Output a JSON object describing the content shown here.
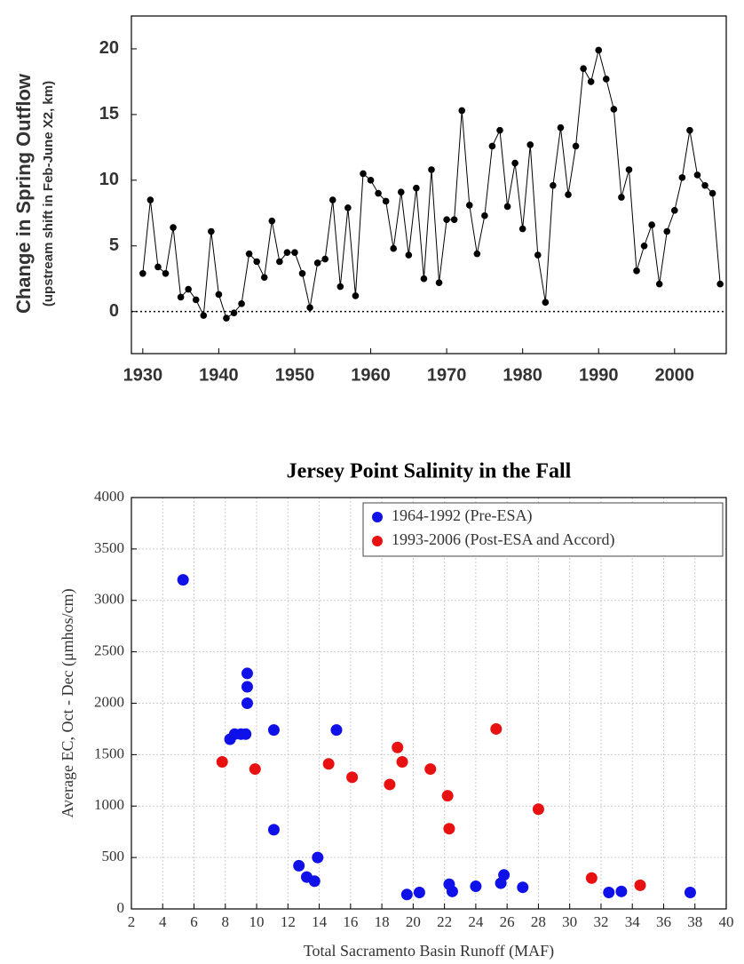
{
  "chart_data": [
    {
      "type": "line",
      "y_label": "Change in Spring Outflow",
      "y_sublabel": "(upstream shift in Feb-June X2, km)",
      "x": [
        1930,
        1931,
        1932,
        1933,
        1934,
        1935,
        1936,
        1937,
        1938,
        1939,
        1940,
        1941,
        1942,
        1943,
        1944,
        1945,
        1946,
        1947,
        1948,
        1949,
        1950,
        1951,
        1952,
        1953,
        1954,
        1955,
        1956,
        1957,
        1958,
        1959,
        1960,
        1961,
        1962,
        1963,
        1964,
        1965,
        1966,
        1967,
        1968,
        1969,
        1970,
        1971,
        1972,
        1973,
        1974,
        1975,
        1976,
        1977,
        1978,
        1979,
        1980,
        1981,
        1982,
        1983,
        1984,
        1985,
        1986,
        1987,
        1988,
        1989,
        1990,
        1991,
        1992,
        1993,
        1994,
        1995,
        1996,
        1997,
        1998,
        1999,
        2000,
        2001,
        2002,
        2003,
        2004,
        2005,
        2006
      ],
      "values": [
        2.9,
        8.5,
        3.4,
        2.9,
        6.4,
        1.1,
        1.7,
        0.9,
        -0.3,
        6.1,
        1.3,
        -0.5,
        -0.1,
        0.6,
        4.4,
        3.8,
        2.6,
        6.9,
        3.8,
        4.5,
        4.5,
        2.9,
        0.3,
        3.7,
        4.0,
        8.5,
        1.9,
        7.9,
        1.2,
        10.5,
        10.0,
        9.0,
        8.4,
        4.8,
        9.1,
        4.3,
        9.4,
        2.5,
        10.8,
        2.2,
        7.0,
        7.0,
        15.3,
        8.1,
        4.4,
        7.3,
        12.6,
        13.8,
        8.0,
        11.3,
        6.3,
        12.7,
        4.3,
        0.7,
        9.6,
        14.0,
        8.9,
        12.6,
        18.5,
        17.5,
        19.9,
        17.7,
        15.4,
        8.7,
        10.8,
        3.1,
        5.0,
        6.6,
        2.1,
        6.1,
        7.7,
        10.2,
        13.8,
        10.4,
        9.6,
        9.0,
        2.1
      ],
      "color": "#000000",
      "reference_line": 0,
      "xlim": [
        1928.5,
        2006.8
      ],
      "xticks": [
        1930,
        1940,
        1950,
        1960,
        1970,
        1980,
        1990,
        2000
      ],
      "ylim": [
        -3.2,
        22.5
      ],
      "yticks": [
        0,
        5,
        10,
        15,
        20
      ],
      "grid": false
    },
    {
      "type": "scatter",
      "title": "Jersey Point Salinity in the Fall",
      "x_label": "Total Sacramento Basin Runoff (MAF)",
      "y_label": "Average EC, Oct - Dec (μmhos/cm)",
      "series": [
        {
          "name": "1964-1992 (Pre-ESA)",
          "color": "#1010e8",
          "x": [
            5.3,
            9.4,
            9.4,
            9.4,
            8.3,
            8.6,
            9.0,
            9.3,
            11.1,
            15.1,
            11.1,
            12.7,
            13.2,
            13.7,
            13.9,
            19.6,
            20.4,
            22.3,
            22.5,
            24.0,
            25.6,
            25.8,
            27.0,
            32.5,
            33.3,
            37.7
          ],
          "values": [
            3200,
            2290,
            2160,
            2000,
            1650,
            1700,
            1700,
            1700,
            1740,
            1740,
            770,
            420,
            310,
            270,
            500,
            140,
            160,
            240,
            170,
            220,
            250,
            330,
            210,
            160,
            170,
            160
          ]
        },
        {
          "name": "1993-2006 (Post-ESA and Accord)",
          "color": "#e81010",
          "x": [
            7.8,
            9.9,
            14.6,
            16.1,
            18.5,
            19.0,
            19.3,
            21.1,
            22.2,
            22.3,
            25.3,
            28.0,
            31.4,
            34.5
          ],
          "values": [
            1430,
            1360,
            1410,
            1280,
            1210,
            1570,
            1430,
            1360,
            1100,
            780,
            1750,
            970,
            300,
            230
          ]
        }
      ],
      "xlim": [
        2,
        40
      ],
      "xticks": [
        2,
        4,
        6,
        8,
        10,
        12,
        14,
        16,
        18,
        20,
        22,
        24,
        26,
        28,
        30,
        32,
        34,
        36,
        38,
        40
      ],
      "ylim": [
        0,
        4000
      ],
      "yticks": [
        0,
        500,
        1000,
        1500,
        2000,
        2500,
        3000,
        3500,
        4000
      ],
      "grid": true,
      "legend": "top-right"
    }
  ]
}
